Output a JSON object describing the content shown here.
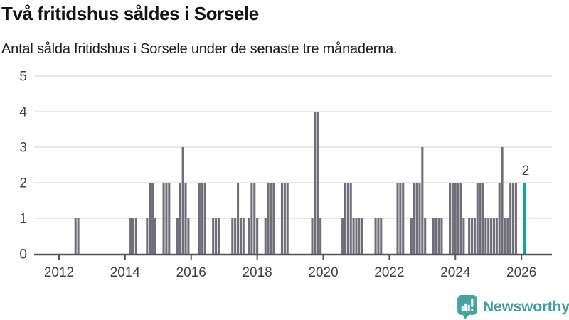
{
  "header": {
    "title": "Två fritidshus såldes i Sorsele",
    "subtitle": "Antal sålda fritidshus i Sorsele under de senaste tre månaderna."
  },
  "chart_data": {
    "type": "bar",
    "title": "Två fritidshus såldes i Sorsele",
    "xlabel": "",
    "ylabel": "",
    "ylim": [
      0,
      5
    ],
    "yticks": [
      0,
      1,
      2,
      3,
      4,
      5
    ],
    "xticks": [
      2012,
      2014,
      2016,
      2018,
      2020,
      2022,
      2024,
      2026
    ],
    "grid": "horizontal",
    "legend": "none",
    "bar_color": "#6F6E79",
    "highlight_color": "#0FA3A3",
    "axis_color": "#53525B",
    "gridline_color": "#E8E8E8",
    "tick_label_color": "#3F3F46",
    "points": [
      [
        "2012-07",
        1
      ],
      [
        "2012-08",
        1
      ],
      [
        "2014-03",
        1
      ],
      [
        "2014-04",
        1
      ],
      [
        "2014-05",
        1
      ],
      [
        "2014-09",
        1
      ],
      [
        "2014-10",
        2
      ],
      [
        "2014-11",
        2
      ],
      [
        "2014-12",
        1
      ],
      [
        "2015-03",
        2
      ],
      [
        "2015-04",
        2
      ],
      [
        "2015-05",
        2
      ],
      [
        "2015-08",
        1
      ],
      [
        "2015-09",
        2
      ],
      [
        "2015-10",
        3
      ],
      [
        "2015-11",
        2
      ],
      [
        "2015-12",
        1
      ],
      [
        "2016-04",
        2
      ],
      [
        "2016-05",
        2
      ],
      [
        "2016-06",
        2
      ],
      [
        "2016-09",
        1
      ],
      [
        "2016-10",
        1
      ],
      [
        "2016-11",
        1
      ],
      [
        "2017-04",
        1
      ],
      [
        "2017-05",
        1
      ],
      [
        "2017-06",
        2
      ],
      [
        "2017-07",
        1
      ],
      [
        "2017-08",
        1
      ],
      [
        "2017-10",
        1
      ],
      [
        "2017-11",
        2
      ],
      [
        "2017-12",
        2
      ],
      [
        "2018-01",
        1
      ],
      [
        "2018-04",
        1
      ],
      [
        "2018-05",
        2
      ],
      [
        "2018-06",
        2
      ],
      [
        "2018-07",
        2
      ],
      [
        "2018-10",
        2
      ],
      [
        "2018-11",
        2
      ],
      [
        "2018-12",
        2
      ],
      [
        "2019-09",
        1
      ],
      [
        "2019-10",
        4
      ],
      [
        "2019-11",
        4
      ],
      [
        "2019-12",
        1
      ],
      [
        "2020-08",
        1
      ],
      [
        "2020-09",
        2
      ],
      [
        "2020-10",
        2
      ],
      [
        "2020-11",
        2
      ],
      [
        "2020-12",
        1
      ],
      [
        "2021-01",
        1
      ],
      [
        "2021-02",
        1
      ],
      [
        "2021-03",
        1
      ],
      [
        "2021-08",
        1
      ],
      [
        "2021-09",
        1
      ],
      [
        "2021-10",
        1
      ],
      [
        "2022-04",
        2
      ],
      [
        "2022-05",
        2
      ],
      [
        "2022-06",
        2
      ],
      [
        "2022-09",
        1
      ],
      [
        "2022-10",
        2
      ],
      [
        "2022-11",
        2
      ],
      [
        "2022-12",
        2
      ],
      [
        "2023-01",
        3
      ],
      [
        "2023-02",
        1
      ],
      [
        "2023-05",
        1
      ],
      [
        "2023-06",
        1
      ],
      [
        "2023-07",
        1
      ],
      [
        "2023-08",
        1
      ],
      [
        "2023-11",
        2
      ],
      [
        "2023-12",
        2
      ],
      [
        "2024-01",
        2
      ],
      [
        "2024-02",
        2
      ],
      [
        "2024-03",
        2
      ],
      [
        "2024-04",
        1
      ],
      [
        "2024-06",
        1
      ],
      [
        "2024-07",
        1
      ],
      [
        "2024-08",
        1
      ],
      [
        "2024-09",
        2
      ],
      [
        "2024-10",
        2
      ],
      [
        "2024-11",
        2
      ],
      [
        "2024-12",
        1
      ],
      [
        "2025-01",
        1
      ],
      [
        "2025-02",
        1
      ],
      [
        "2025-03",
        1
      ],
      [
        "2025-04",
        1
      ],
      [
        "2025-05",
        2
      ],
      [
        "2025-06",
        3
      ],
      [
        "2025-07",
        1
      ],
      [
        "2025-08",
        1
      ],
      [
        "2025-09",
        2
      ],
      [
        "2025-10",
        2
      ],
      [
        "2025-11",
        2
      ]
    ],
    "highlight": {
      "month": "2026-02",
      "value": 2,
      "label": "2"
    }
  },
  "branding": {
    "logo_text": "Newsworthy",
    "logo_color": "#3FA09C",
    "logo_icon_color": "#44A49E"
  }
}
